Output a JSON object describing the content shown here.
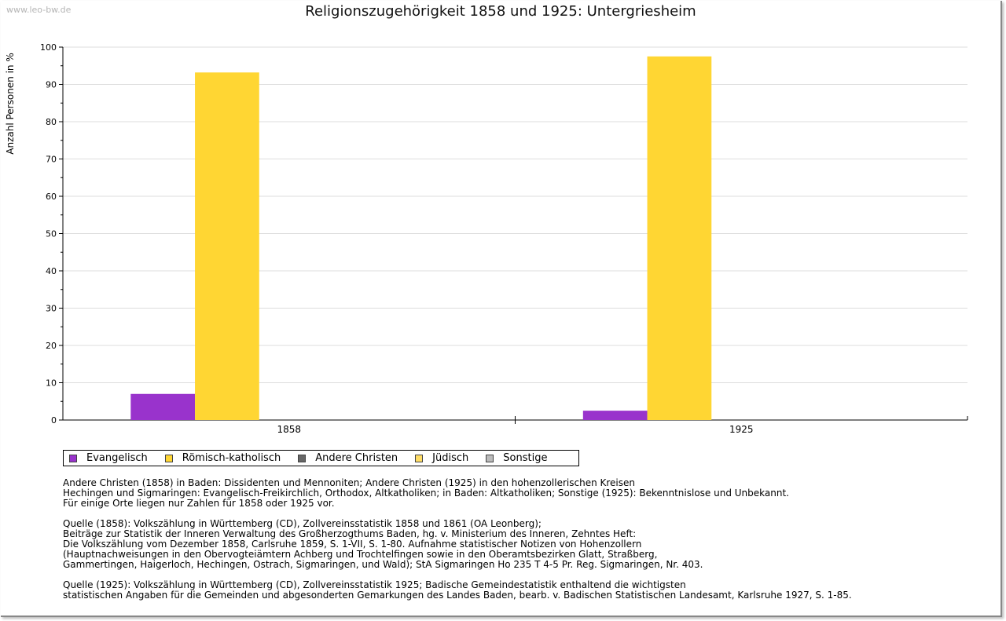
{
  "watermark": "www.leo-bw.de",
  "chart_data": {
    "type": "bar",
    "title": "Religionszugehörigkeit 1858 und 1925: Untergriesheim",
    "ylabel": "Anzahl Personen in %",
    "xlabel": "",
    "categories": [
      "1858",
      "1925"
    ],
    "ylim": [
      0,
      100
    ],
    "yticks": [
      0,
      10,
      20,
      30,
      40,
      50,
      60,
      70,
      80,
      90,
      100
    ],
    "grid": true,
    "series": [
      {
        "name": "Evangelisch",
        "color": "#9933CC",
        "values": [
          7.0,
          2.5
        ]
      },
      {
        "name": "Römisch-katholisch",
        "color": "#FFD633",
        "values": [
          93.2,
          97.5
        ]
      },
      {
        "name": "Andere Christen",
        "color": "#666666",
        "values": [
          0,
          0
        ]
      },
      {
        "name": "Jüdisch",
        "color": "#FFDD66",
        "values": [
          0,
          0
        ]
      },
      {
        "name": "Sonstige",
        "color": "#BBBBBB",
        "values": [
          0,
          0
        ]
      }
    ]
  },
  "notes": [
    [
      "Andere Christen (1858) in Baden: Dissidenten und Mennoniten; Andere Christen (1925) in den hohenzollerischen Kreisen",
      "Hechingen und Sigmaringen: Evangelisch-Freikirchlich, Orthodox, Altkatholiken; in Baden: Altkatholiken; Sonstige (1925): Bekenntnislose und Unbekannt.",
      "Für einige Orte liegen nur Zahlen für 1858 oder 1925 vor."
    ],
    [
      "Quelle (1858): Volkszählung in Württemberg (CD), Zollvereinsstatistik 1858 und 1861 (OA Leonberg);",
      "Beiträge zur Statistik der Inneren Verwaltung des Großherzogthums Baden, hg. v. Ministerium des Inneren, Zehntes Heft:",
      "Die Volkszählung vom Dezember 1858, Carlsruhe 1859, S. 1-VII, S. 1-80. Aufnahme statistischer Notizen von Hohenzollern",
      "(Hauptnachweisungen in den Obervogteiämtern Achberg und Trochtelfingen sowie in den Oberamtsbezirken Glatt, Straßberg,",
      "Gammertingen, Haigerloch, Hechingen, Ostrach, Sigmaringen, und Wald); StA Sigmaringen Ho 235 T 4-5 Pr. Reg. Sigmaringen, Nr. 403."
    ],
    [
      "Quelle (1925): Volkszählung in Württemberg (CD), Zollvereinsstatistik 1925; Badische Gemeindestatistik enthaltend die wichtigsten",
      "statistischen Angaben für die Gemeinden und abgesonderten Gemarkungen des Landes Baden, bearb. v. Badischen Statistischen Landesamt, Karlsruhe 1927, S. 1-85."
    ]
  ]
}
